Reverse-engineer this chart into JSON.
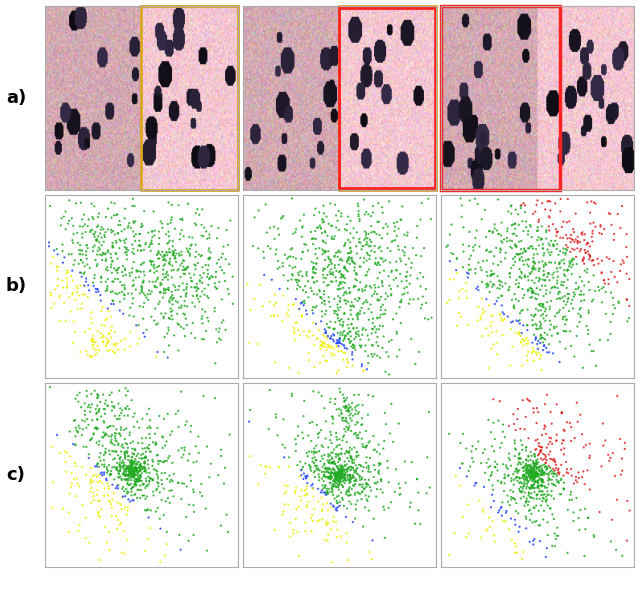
{
  "figure_size": [
    6.4,
    6.03
  ],
  "dpi": 100,
  "background_color": "#ffffff",
  "row_labels": [
    "a)",
    "b)",
    "c)"
  ],
  "row_label_fontsize": 13,
  "row_label_fontweight": "bold",
  "cell_border_color": "#aaaaaa",
  "cell_border_lw": 0.8,
  "green_color": "#22aa22",
  "yellow_color": "#eeee00",
  "blue_color": "#2244ff",
  "red_color": "#dd2222"
}
